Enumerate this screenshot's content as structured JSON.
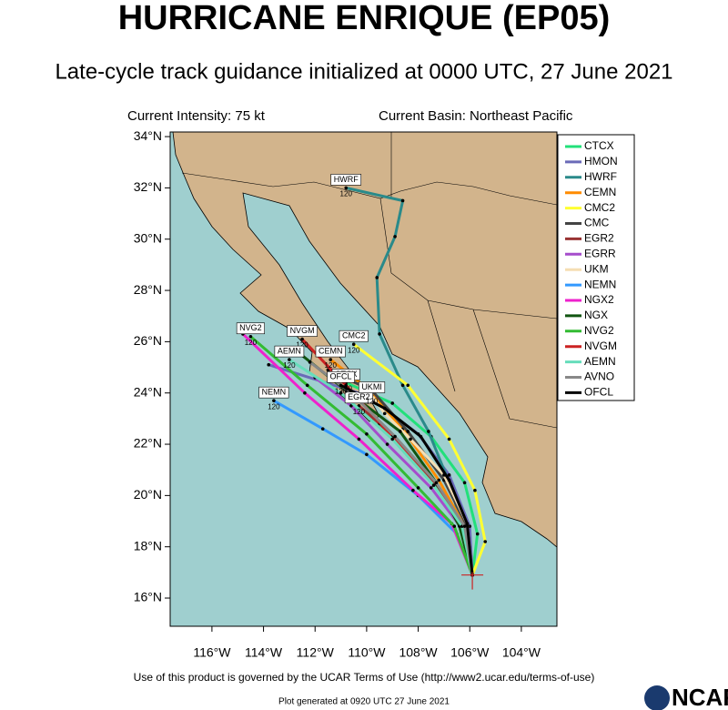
{
  "header": {
    "title": "HURRICANE ENRIQUE (EP05)",
    "subtitle": "Late-cycle track guidance initialized at 0000 UTC, 27 June 2021",
    "current_intensity": "Current Intensity: 75 kt",
    "current_basin": "Current Basin: Northeast Pacific"
  },
  "map": {
    "lonlim": [
      -117.62,
      -102.62
    ],
    "latlim": [
      14.9,
      34.18
    ],
    "latticks": [
      {
        "value": 16,
        "label": "16°N"
      },
      {
        "value": 18,
        "label": "18°N"
      },
      {
        "value": 20,
        "label": "20°N"
      },
      {
        "value": 22,
        "label": "22°N"
      },
      {
        "value": 24,
        "label": "24°N"
      },
      {
        "value": 26,
        "label": "26°N"
      },
      {
        "value": 28,
        "label": "28°N"
      },
      {
        "value": 30,
        "label": "30°N"
      },
      {
        "value": 32,
        "label": "32°N"
      },
      {
        "value": 34,
        "label": "34°N"
      }
    ],
    "lonticks": [
      {
        "value": -116,
        "label": "116°W"
      },
      {
        "value": -114,
        "label": "114°W"
      },
      {
        "value": -112,
        "label": "112°W"
      },
      {
        "value": -110,
        "label": "110°W"
      },
      {
        "value": -108,
        "label": "108°W"
      },
      {
        "value": -106,
        "label": "106°W"
      },
      {
        "value": -104,
        "label": "104°W"
      }
    ],
    "end_hour": 120,
    "models": [
      {
        "name": "CTCX",
        "color": "#22e07a",
        "labeled": true,
        "lon": [
          -105.9,
          -105.7,
          -106.2,
          -107.5,
          -109.0,
          -110.8
        ],
        "lat": [
          16.9,
          18.5,
          20.5,
          22.3,
          23.6,
          24.4
        ]
      },
      {
        "name": "HMON",
        "color": "#6a6ab8",
        "labeled": false,
        "lon": [
          -105.9,
          -106.0,
          -106.8,
          -108.0,
          -110.0,
          -113.8
        ],
        "lat": [
          16.9,
          18.8,
          20.8,
          22.4,
          23.9,
          25.1
        ]
      },
      {
        "name": "HWRF",
        "color": "#2a8a8a",
        "labeled": true,
        "lon": [
          -105.9,
          -106.2,
          -106.8,
          -107.6,
          -108.6,
          -109.5,
          -109.6,
          -108.9,
          -108.6,
          -110.8
        ],
        "lat": [
          16.9,
          18.5,
          20.5,
          22.5,
          24.3,
          26.3,
          28.5,
          30.1,
          31.5,
          32.0
        ]
      },
      {
        "name": "CEMN",
        "color": "#ff8c00",
        "labeled": true,
        "lon": [
          -105.9,
          -106.2,
          -107.2,
          -108.6,
          -110.0,
          -111.4
        ],
        "lat": [
          16.9,
          18.8,
          20.6,
          22.6,
          24.2,
          25.3
        ]
      },
      {
        "name": "CMC2",
        "color": "#ffff33",
        "labeled": true,
        "lon": [
          -105.9,
          -105.4,
          -105.8,
          -106.8,
          -108.4,
          -110.5
        ],
        "lat": [
          16.9,
          18.2,
          20.2,
          22.2,
          24.3,
          25.9
        ]
      },
      {
        "name": "CMC",
        "color": "#444444",
        "labeled": false,
        "lon": [
          -105.9,
          -106.1,
          -107.0,
          -108.4,
          -109.8,
          -111.5
        ],
        "lat": [
          16.9,
          18.8,
          20.6,
          22.5,
          24.1,
          24.9
        ]
      },
      {
        "name": "EGR2",
        "color": "#993333",
        "labeled": true,
        "lon": [
          -105.9,
          -106.2,
          -107.3,
          -108.6,
          -109.5,
          -110.3
        ],
        "lat": [
          16.9,
          18.6,
          20.4,
          21.8,
          22.8,
          23.5
        ]
      },
      {
        "name": "EGRR",
        "color": "#a64dcc",
        "labeled": false,
        "lon": [
          -105.9,
          -106.3,
          -107.5,
          -109.2,
          -110.6,
          -112.0
        ],
        "lat": [
          16.9,
          18.7,
          20.3,
          22.0,
          23.5,
          24.6
        ]
      },
      {
        "name": "UKM",
        "track_label": "UKMI",
        "color": "#f5deb3",
        "labeled": true,
        "lon": [
          -105.9,
          -106.1,
          -107.0,
          -108.3,
          -109.3,
          -109.8
        ],
        "lat": [
          16.9,
          18.9,
          20.8,
          22.2,
          23.2,
          23.9
        ]
      },
      {
        "name": "NEMN",
        "color": "#3399ff",
        "labeled": true,
        "lon": [
          -105.9,
          -106.5,
          -108.0,
          -110.0,
          -111.7,
          -113.6
        ],
        "lat": [
          16.9,
          18.5,
          20.0,
          21.6,
          22.6,
          23.7
        ]
      },
      {
        "name": "NGX2",
        "color": "#ee22cc",
        "labeled": false,
        "lon": [
          -105.9,
          -106.7,
          -108.2,
          -110.3,
          -112.4,
          -114.8
        ],
        "lat": [
          16.9,
          18.9,
          20.2,
          22.2,
          24.0,
          26.3
        ]
      },
      {
        "name": "NGX",
        "color": "#115511",
        "labeled": false,
        "lon": [
          -105.9,
          -106.4,
          -107.3,
          -108.7,
          -110.8,
          -112.8
        ],
        "lat": [
          16.9,
          18.8,
          20.5,
          22.5,
          24.1,
          25.7
        ]
      },
      {
        "name": "NVG2",
        "color": "#33bb33",
        "labeled": true,
        "lon": [
          -105.9,
          -106.6,
          -108.0,
          -110.0,
          -112.3,
          -114.5
        ],
        "lat": [
          16.9,
          18.8,
          20.3,
          22.4,
          24.3,
          26.2
        ]
      },
      {
        "name": "NVGM",
        "color": "#cc2222",
        "labeled": true,
        "lon": [
          -105.9,
          -106.2,
          -107.4,
          -109.0,
          -110.8,
          -112.5
        ],
        "lat": [
          16.9,
          18.8,
          20.4,
          22.3,
          24.3,
          26.1
        ]
      },
      {
        "name": "AEMN",
        "color": "#66ddbb",
        "labeled": true,
        "lon": [
          -105.9,
          -106.3,
          -107.4,
          -109.0,
          -111.0,
          -113.0
        ],
        "lat": [
          16.9,
          18.8,
          20.4,
          22.2,
          24.0,
          25.3
        ]
      },
      {
        "name": "AVNO",
        "color": "#888888",
        "labeled": false,
        "lon": [
          -105.9,
          -106.2,
          -107.3,
          -108.9,
          -110.6,
          -112.2
        ],
        "lat": [
          16.9,
          18.8,
          20.5,
          22.3,
          24.0,
          25.2
        ]
      },
      {
        "name": "OFCL",
        "color": "#000000",
        "labeled": true,
        "lon": [
          -105.9,
          -106.1,
          -106.8,
          -107.9,
          -109.3,
          -111.0
        ],
        "lat": [
          16.9,
          18.9,
          20.6,
          22.3,
          23.4,
          24.3
        ]
      }
    ]
  },
  "footer": {
    "terms": "Use of this product is governed by the UCAR Terms of Use (http://www2.ucar.edu/terms-of-use)",
    "generated": "Plot generated at 0920 UTC  27 June 2021",
    "logo": "NCAR"
  }
}
